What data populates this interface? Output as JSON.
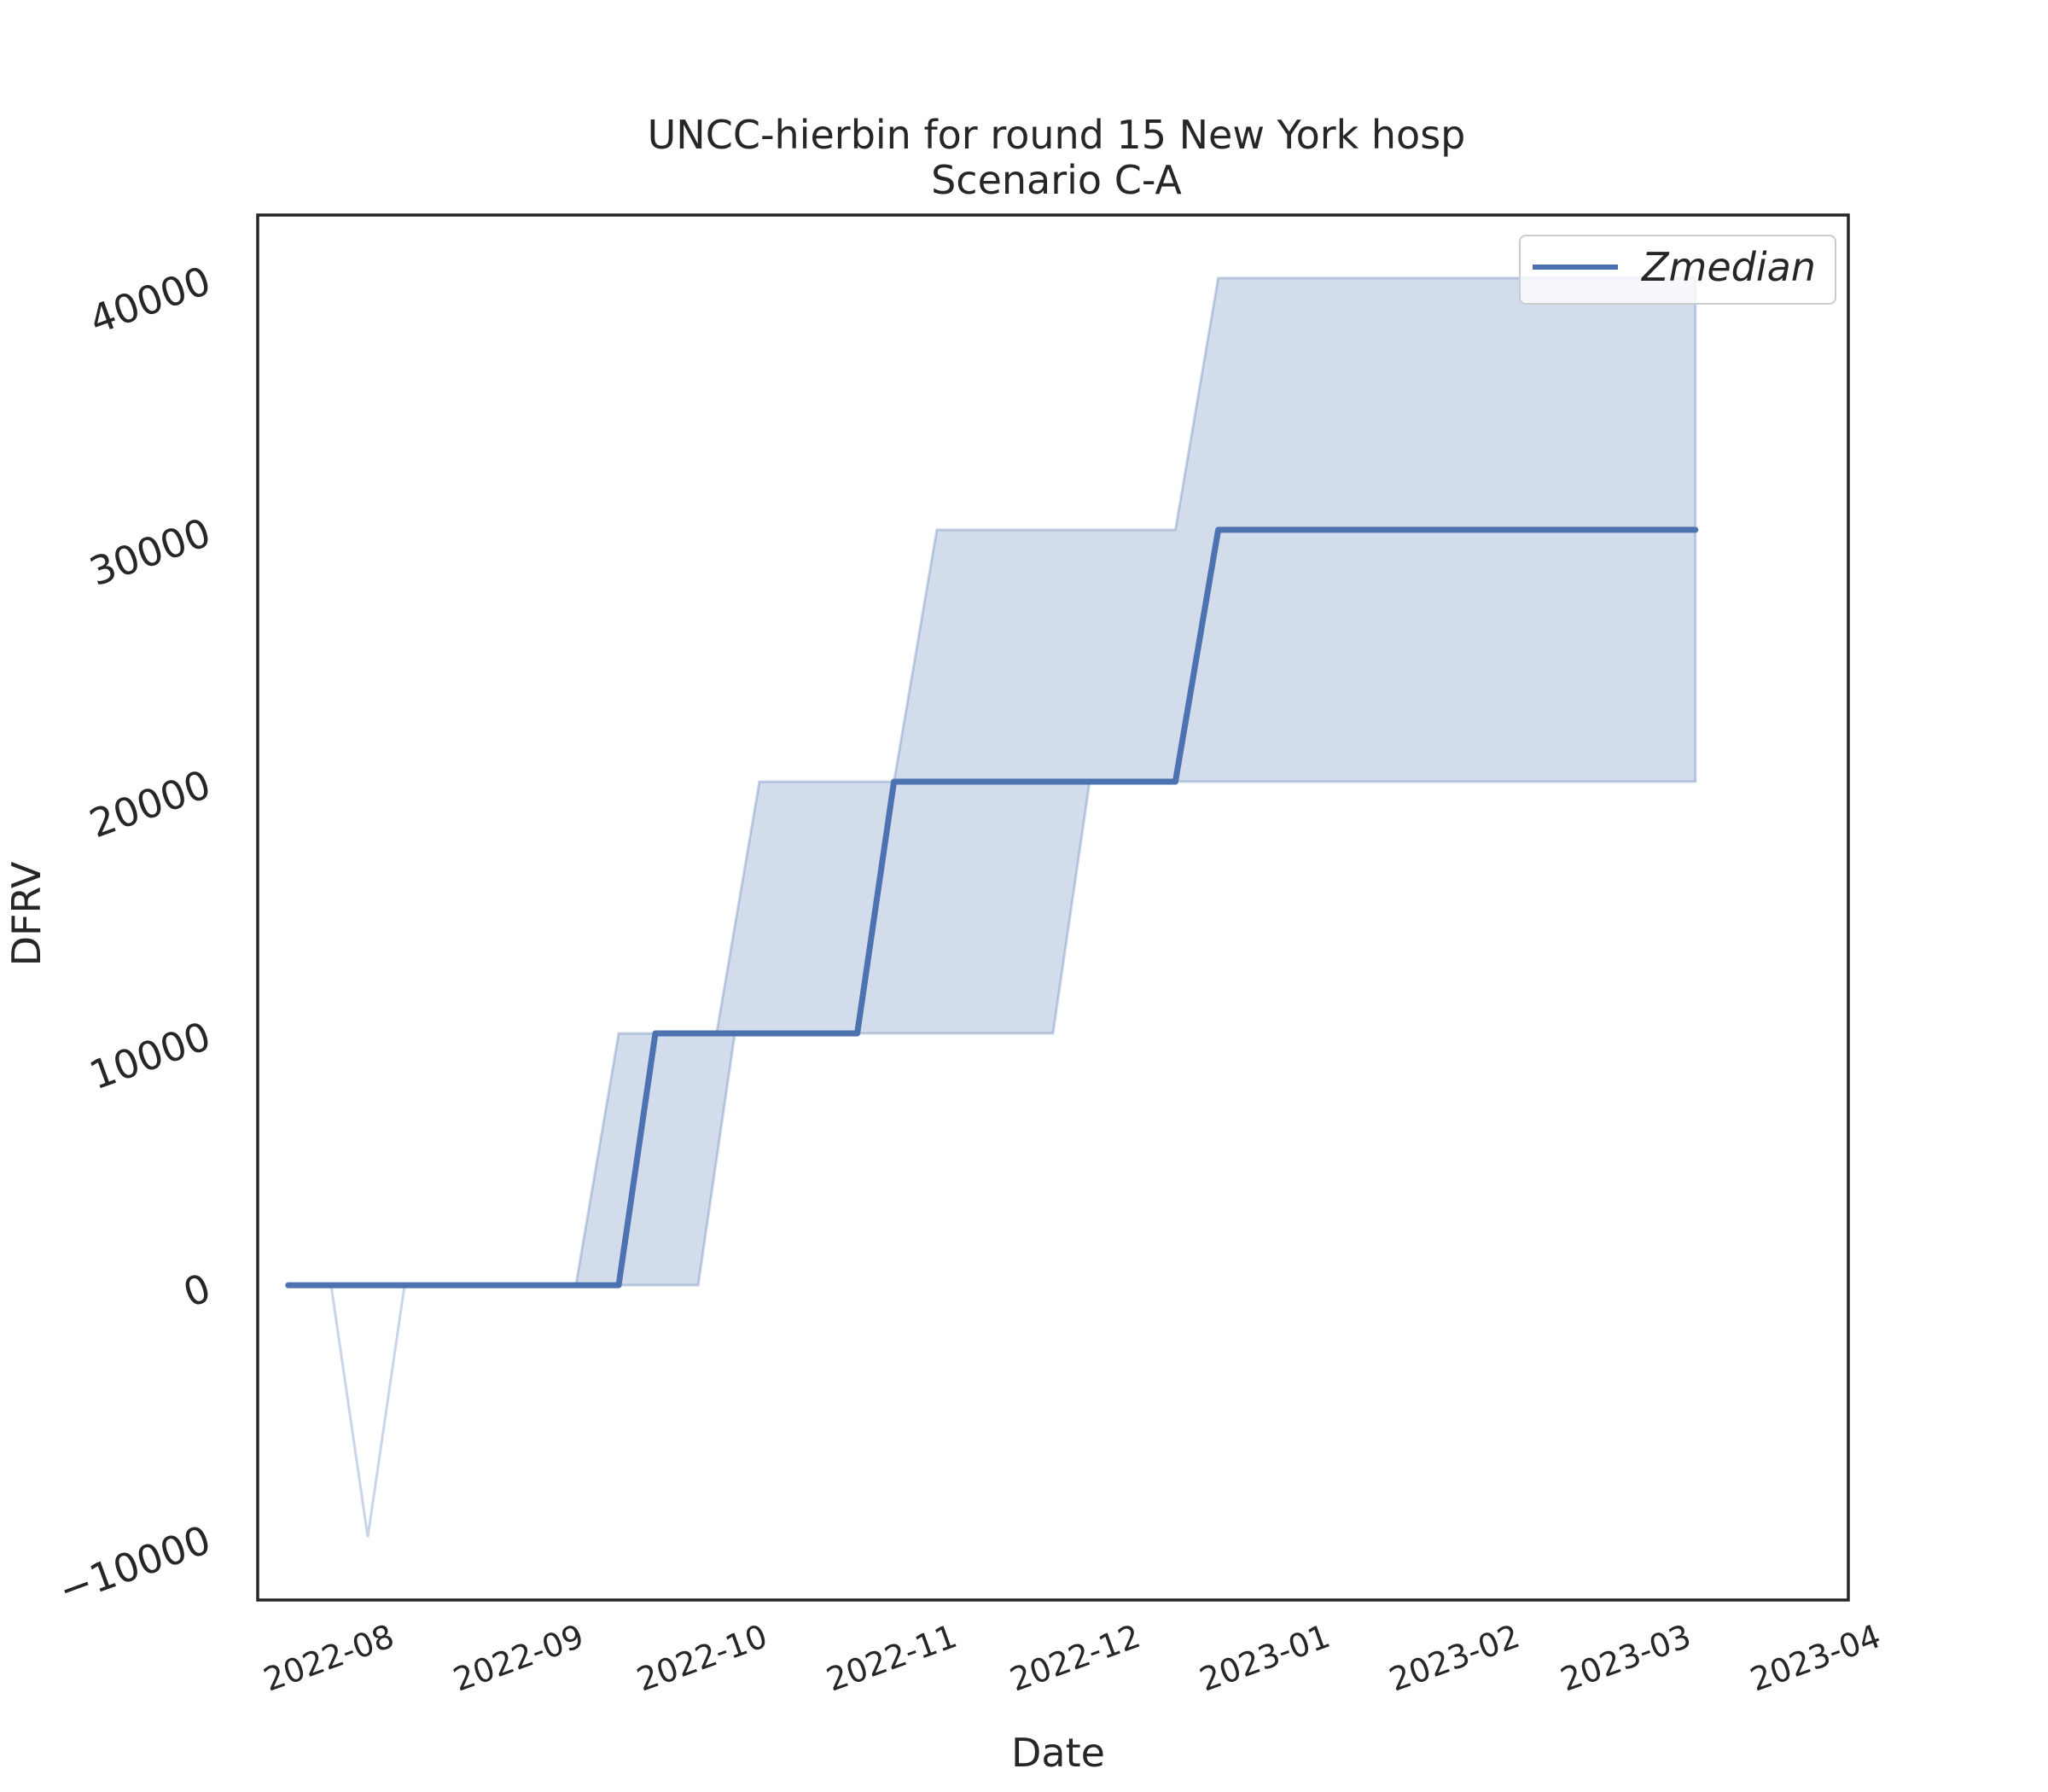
{
  "chart_data": {
    "type": "line",
    "title": "UNCC-hierbin for round 15 New York hosp",
    "subtitle": "Scenario C-A",
    "xlabel": "Date",
    "ylabel": "DFRV",
    "x_ticks": [
      "2022-08",
      "2022-09",
      "2022-10",
      "2022-11",
      "2022-12",
      "2023-01",
      "2023-02",
      "2023-03",
      "2023-04"
    ],
    "y_ticks": [
      -10000,
      0,
      10000,
      20000,
      30000,
      40000
    ],
    "ylim": [
      -12500,
      42500
    ],
    "xlim": [
      "2022-07-18",
      "2023-04-04"
    ],
    "legend": {
      "position": "top-right",
      "entries": [
        "Zmedian"
      ]
    },
    "grid": false,
    "colors": {
      "line": "#4c72b0",
      "band": "#4c72b0"
    },
    "series": [
      {
        "name": "Zmedian",
        "points": [
          [
            "2022-07-23",
            0
          ],
          [
            "2022-09-15",
            0
          ],
          [
            "2022-09-21",
            10000
          ],
          [
            "2022-10-24",
            10000
          ],
          [
            "2022-10-30",
            20000
          ],
          [
            "2022-12-15",
            20000
          ],
          [
            "2022-12-22",
            30000
          ],
          [
            "2023-03-10",
            30000
          ]
        ]
      }
    ],
    "band": {
      "name": "",
      "upper": [
        [
          "2022-07-23",
          0
        ],
        [
          "2022-07-30",
          0
        ],
        [
          "2022-08-05",
          -10000
        ],
        [
          "2022-08-11",
          0
        ],
        [
          "2022-09-08",
          0
        ],
        [
          "2022-09-15",
          10000
        ],
        [
          "2022-10-01",
          10000
        ],
        [
          "2022-10-08",
          20000
        ],
        [
          "2022-10-30",
          20000
        ],
        [
          "2022-11-06",
          30000
        ],
        [
          "2022-12-15",
          30000
        ],
        [
          "2022-12-22",
          40000
        ],
        [
          "2023-03-10",
          40000
        ]
      ],
      "lower": [
        [
          "2022-07-23",
          0
        ],
        [
          "2022-07-30",
          0
        ],
        [
          "2022-08-05",
          -10000
        ],
        [
          "2022-08-11",
          0
        ],
        [
          "2022-09-28",
          0
        ],
        [
          "2022-10-04",
          10000
        ],
        [
          "2022-11-25",
          10000
        ],
        [
          "2022-12-01",
          20000
        ],
        [
          "2023-03-10",
          20000
        ]
      ]
    }
  }
}
